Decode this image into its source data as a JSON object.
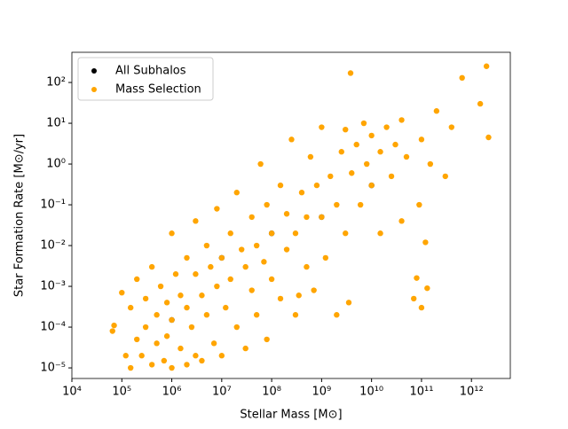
{
  "chart_data": {
    "type": "scatter",
    "xlabel": "Stellar Mass [M⊙]",
    "ylabel": "Star Formation Rate [M⊙/yr]",
    "xscale": "log",
    "yscale": "log",
    "xlim": [
      10000.0,
      6000000000000.0
    ],
    "ylim": [
      5.5e-06,
      550
    ],
    "xticks": [
      {
        "value": 10000.0,
        "label": "10⁴"
      },
      {
        "value": 100000.0,
        "label": "10⁵"
      },
      {
        "value": 1000000.0,
        "label": "10⁶"
      },
      {
        "value": 10000000.0,
        "label": "10⁷"
      },
      {
        "value": 100000000.0,
        "label": "10⁸"
      },
      {
        "value": 1000000000.0,
        "label": "10⁹"
      },
      {
        "value": 10000000000.0,
        "label": "10¹⁰"
      },
      {
        "value": 100000000000.0,
        "label": "10¹¹"
      },
      {
        "value": 1000000000000.0,
        "label": "10¹²"
      }
    ],
    "yticks": [
      {
        "value": 1e-05,
        "label": "10⁻⁵"
      },
      {
        "value": 0.0001,
        "label": "10⁻⁴"
      },
      {
        "value": 0.001,
        "label": "10⁻³"
      },
      {
        "value": 0.01,
        "label": "10⁻²"
      },
      {
        "value": 0.1,
        "label": "10⁻¹"
      },
      {
        "value": 1,
        "label": "10⁰"
      },
      {
        "value": 10,
        "label": "10¹"
      },
      {
        "value": 100,
        "label": "10²"
      }
    ],
    "legend": "upper left",
    "series": [
      {
        "name": "All Subhalos",
        "color": "#000000",
        "x": [
          1000000.0,
          10000000.0,
          100000000.0,
          1000000000.0,
          10000000000.0
        ],
        "values": [
          0.00015,
          0.005,
          0.02,
          0.05,
          0.3
        ]
      },
      {
        "name": "Mass Selection",
        "color": "#ffa500",
        "x": [
          65000.0,
          70000.0,
          100000.0,
          120000.0,
          150000.0,
          150000.0,
          200000.0,
          200000.0,
          250000.0,
          300000.0,
          300000.0,
          400000.0,
          400000.0,
          500000.0,
          500000.0,
          600000.0,
          700000.0,
          800000.0,
          800000.0,
          1000000.0,
          1000000.0,
          1000000.0,
          1200000.0,
          1500000.0,
          1500000.0,
          2000000.0,
          2000000.0,
          2000000.0,
          2500000.0,
          3000000.0,
          3000000.0,
          3000000.0,
          4000000.0,
          4000000.0,
          5000000.0,
          5000000.0,
          6000000.0,
          7000000.0,
          8000000.0,
          8000000.0,
          10000000.0,
          10000000.0,
          12000000.0,
          15000000.0,
          15000000.0,
          20000000.0,
          20000000.0,
          25000000.0,
          30000000.0,
          30000000.0,
          40000000.0,
          40000000.0,
          50000000.0,
          50000000.0,
          60000000.0,
          70000000.0,
          80000000.0,
          80000000.0,
          100000000.0,
          100000000.0,
          150000000.0,
          150000000.0,
          200000000.0,
          200000000.0,
          250000000.0,
          300000000.0,
          300000000.0,
          400000000.0,
          350000000.0,
          500000000.0,
          500000000.0,
          600000000.0,
          700000000.0,
          800000000.0,
          1000000000.0,
          1000000000.0,
          1200000000.0,
          1500000000.0,
          2000000000.0,
          2000000000.0,
          2500000000.0,
          3000000000.0,
          3000000000.0,
          3800000000.0,
          3500000000.0,
          4000000000.0,
          5000000000.0,
          6000000000.0,
          7000000000.0,
          8000000000.0,
          10000000000.0,
          10000000000.0,
          15000000000.0,
          15000000000.0,
          20000000000.0,
          25000000000.0,
          30000000000.0,
          40000000000.0,
          40000000000.0,
          50000000000.0,
          70000000000.0,
          80000000000.0,
          90000000000.0,
          100000000000.0,
          120000000000.0,
          130000000000.0,
          100000000000.0,
          150000000000.0,
          200000000000.0,
          300000000000.0,
          400000000000.0,
          650000000000.0,
          1500000000000.0,
          2000000000000.0,
          2200000000000.0
        ],
        "values": [
          8e-05,
          0.00011,
          0.0007,
          2e-05,
          1e-05,
          0.0003,
          5e-05,
          0.0015,
          2e-05,
          0.0001,
          0.0005,
          1.2e-05,
          0.003,
          4e-05,
          0.0002,
          0.001,
          1.5e-05,
          6e-05,
          0.0004,
          0.02,
          1e-05,
          0.00015,
          0.002,
          3e-05,
          0.0006,
          1.2e-05,
          0.0003,
          0.005,
          0.0001,
          2e-05,
          0.002,
          0.04,
          0.0006,
          1.5e-05,
          0.01,
          0.0002,
          0.003,
          4e-05,
          0.001,
          0.08,
          0.005,
          2e-05,
          0.0003,
          0.02,
          0.0015,
          0.0001,
          0.2,
          0.008,
          3e-05,
          0.003,
          0.05,
          0.0008,
          0.01,
          0.0002,
          1,
          0.004,
          5e-05,
          0.1,
          0.02,
          0.0015,
          0.3,
          0.0005,
          0.06,
          0.008,
          4,
          0.02,
          0.0002,
          0.2,
          0.0006,
          0.05,
          0.003,
          1.5,
          0.0008,
          0.3,
          0.05,
          8,
          0.005,
          0.5,
          0.1,
          0.0002,
          2,
          7,
          0.02,
          170,
          0.0004,
          0.6,
          3,
          0.1,
          10,
          1,
          0.3,
          5,
          2,
          0.02,
          8,
          0.5,
          3,
          0.04,
          12,
          1.5,
          0.0005,
          0.0016,
          0.1,
          4,
          0.012,
          0.0009,
          0.0003,
          1,
          20,
          0.5,
          8,
          130,
          30,
          250,
          4.5
        ]
      }
    ]
  }
}
